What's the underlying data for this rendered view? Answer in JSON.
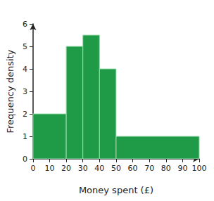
{
  "chart_data": {
    "type": "histogram",
    "bins": [
      0,
      20,
      30,
      40,
      50,
      100
    ],
    "values": [
      2,
      5,
      5.5,
      4,
      1
    ],
    "color": "#1f9a47",
    "xlabel": "Money spent (£)",
    "ylabel": "Frequency density",
    "xlim": [
      0,
      100
    ],
    "xticks": [
      0,
      10,
      20,
      30,
      40,
      50,
      60,
      70,
      80,
      90,
      100
    ],
    "ylim": [
      0,
      6
    ],
    "yticks": [
      0,
      1,
      2,
      3,
      4,
      5,
      6
    ],
    "grid": false
  }
}
